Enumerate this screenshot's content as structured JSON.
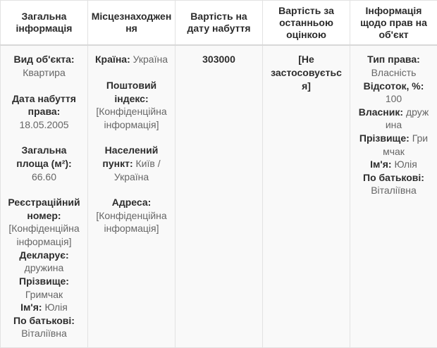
{
  "table": {
    "headers": [
      "Загальна інформація",
      "Місцезнаходження",
      "Вартість на дату набуття",
      "Вартість за останньою оцінкою",
      "Інформація щодо прав на об'єкт"
    ],
    "general": [
      {
        "label": "Вид об'єкта:",
        "value": "Квартира"
      },
      {
        "label": "Дата набуття права:",
        "value": "18.05.2005"
      },
      {
        "label": "Загальна площа (м²):",
        "value": "66.60"
      },
      {
        "label": "Реєстраційний номер:",
        "value": "[Конфіденційна інформація]"
      }
    ],
    "declarant": [
      {
        "label": "Декларує:",
        "value": "дружина"
      },
      {
        "label": "Прізвище:",
        "value": "Гримчак"
      },
      {
        "label": "Ім'я:",
        "value": "Юлія"
      },
      {
        "label": "По батькові:",
        "value": "Віталіївна"
      }
    ],
    "location": [
      {
        "label": "Країна:",
        "value": "Україна"
      },
      {
        "label": "Поштовий індекс:",
        "value": "[Конфіденційна інформація]"
      },
      {
        "label": "Населений пункт:",
        "value": "Київ / Україна"
      },
      {
        "label": "Адреса:",
        "value": "[Конфіденційна інформація]"
      }
    ],
    "value_acquired": "303000",
    "value_last": "[Не застосовується]",
    "rights": [
      {
        "label": "Тип права:",
        "value": "Власність"
      },
      {
        "label": "Відсоток, %:",
        "value": "100"
      },
      {
        "label": "Власник:",
        "value": "дружина"
      },
      {
        "label": "Прізвище:",
        "value": "Гримчак"
      },
      {
        "label": "Ім'я:",
        "value": "Юлія"
      },
      {
        "label": "По батькові:",
        "value": "Віталіївна"
      }
    ]
  }
}
